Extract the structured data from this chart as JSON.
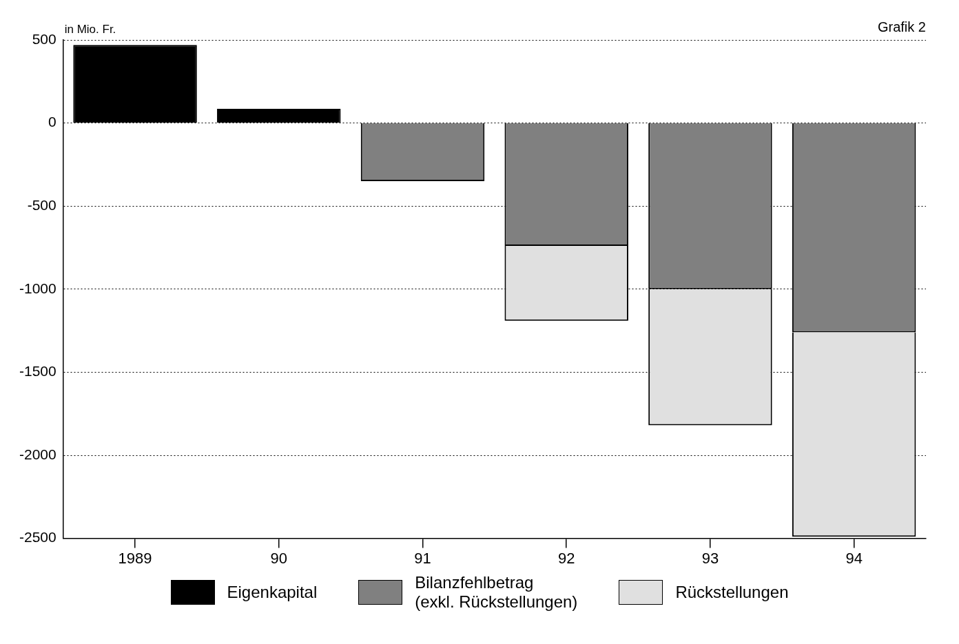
{
  "chart_data": {
    "type": "bar",
    "ylabel": "in Mio. Fr.",
    "annotations": [
      "Grafik 2"
    ],
    "categories": [
      "1989",
      "90",
      "91",
      "92",
      "93",
      "94"
    ],
    "series": [
      {
        "name": "Eigenkapital",
        "color": "#000000",
        "values": [
          470,
          85,
          null,
          null,
          null,
          null
        ]
      },
      {
        "name": "Bilanzfehlbetrag\n(exkl. Rückstellungen)",
        "color": "#808080",
        "values": [
          null,
          null,
          -350,
          -740,
          -1000,
          -1260
        ]
      },
      {
        "name": "Rückstellungen",
        "color": "#e0e0e0",
        "values": [
          null,
          null,
          null,
          -450,
          -820,
          -1230
        ]
      }
    ],
    "stacked": true,
    "ylim": [
      -2500,
      500
    ],
    "yticks": [
      -2500,
      -2000,
      -1500,
      -1000,
      -500,
      0,
      500
    ],
    "grid": "y",
    "legend": "bottom"
  }
}
